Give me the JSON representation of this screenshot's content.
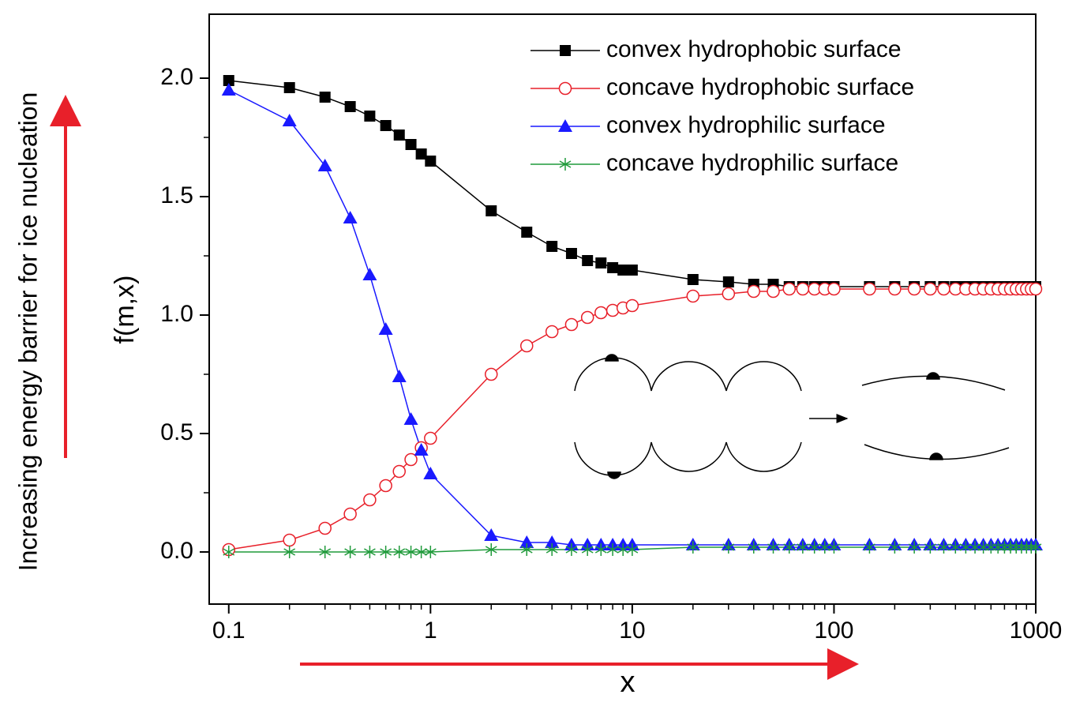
{
  "chart_data": {
    "type": "line",
    "annotation": "Increasing energy barrier for ice nucleation",
    "x_label": "x",
    "y_label": "f(m,x)",
    "x": [
      0.1,
      0.2,
      0.3,
      0.4,
      0.5,
      0.6,
      0.7,
      0.8,
      0.9,
      1,
      2,
      3,
      4,
      5,
      6,
      7,
      8,
      9,
      10,
      20,
      30,
      40,
      50,
      60,
      70,
      80,
      90,
      100,
      150,
      200,
      250,
      300,
      350,
      400,
      450,
      500,
      550,
      600,
      650,
      700,
      750,
      800,
      850,
      900,
      950,
      1000
    ],
    "series": [
      {
        "name": "convex hydrophobic surface",
        "color": "#000000",
        "marker": "square",
        "values": [
          1.99,
          1.96,
          1.92,
          1.88,
          1.84,
          1.8,
          1.76,
          1.72,
          1.68,
          1.65,
          1.44,
          1.35,
          1.29,
          1.26,
          1.23,
          1.22,
          1.2,
          1.19,
          1.19,
          1.15,
          1.14,
          1.13,
          1.13,
          1.12,
          1.12,
          1.12,
          1.12,
          1.12,
          1.12,
          1.12,
          1.12,
          1.12,
          1.12,
          1.12,
          1.12,
          1.12,
          1.12,
          1.12,
          1.12,
          1.12,
          1.12,
          1.12,
          1.12,
          1.12,
          1.12,
          1.12
        ]
      },
      {
        "name": "concave hydrophobic surface",
        "color": "#e8202a",
        "marker": "circle",
        "values": [
          0.01,
          0.05,
          0.1,
          0.16,
          0.22,
          0.28,
          0.34,
          0.39,
          0.44,
          0.48,
          0.75,
          0.87,
          0.93,
          0.96,
          0.99,
          1.01,
          1.02,
          1.03,
          1.04,
          1.08,
          1.09,
          1.1,
          1.1,
          1.11,
          1.11,
          1.11,
          1.11,
          1.11,
          1.11,
          1.11,
          1.11,
          1.11,
          1.11,
          1.11,
          1.11,
          1.11,
          1.11,
          1.11,
          1.11,
          1.11,
          1.11,
          1.11,
          1.11,
          1.11,
          1.11,
          1.11
        ]
      },
      {
        "name": "convex hydrophilic surface",
        "color": "#1a1aff",
        "marker": "triangle",
        "values": [
          1.95,
          1.82,
          1.63,
          1.41,
          1.17,
          0.94,
          0.74,
          0.56,
          0.43,
          0.33,
          0.07,
          0.04,
          0.04,
          0.03,
          0.03,
          0.03,
          0.03,
          0.03,
          0.03,
          0.03,
          0.03,
          0.03,
          0.03,
          0.03,
          0.03,
          0.03,
          0.03,
          0.03,
          0.03,
          0.03,
          0.03,
          0.03,
          0.03,
          0.03,
          0.03,
          0.03,
          0.03,
          0.03,
          0.03,
          0.03,
          0.03,
          0.03,
          0.03,
          0.03,
          0.03,
          0.03
        ]
      },
      {
        "name": "concave hydrophilic surface",
        "color": "#1f9a3a",
        "marker": "star",
        "values": [
          0,
          0,
          0,
          0,
          0,
          0,
          0,
          0,
          0,
          0,
          0.01,
          0.01,
          0.01,
          0.01,
          0.01,
          0.01,
          0.01,
          0.01,
          0.01,
          0.02,
          0.02,
          0.02,
          0.02,
          0.02,
          0.02,
          0.02,
          0.02,
          0.02,
          0.02,
          0.02,
          0.02,
          0.02,
          0.02,
          0.02,
          0.02,
          0.02,
          0.02,
          0.02,
          0.02,
          0.02,
          0.02,
          0.02,
          0.02,
          0.02,
          0.02,
          0.02
        ]
      }
    ],
    "xscale": "log",
    "xlim": [
      0.08,
      1000
    ],
    "xticks": [
      0.1,
      1,
      10,
      100,
      1000
    ],
    "xminorticks": [
      0.2,
      0.3,
      0.4,
      0.5,
      0.6,
      0.7,
      0.8,
      0.9,
      2,
      3,
      4,
      5,
      6,
      7,
      8,
      9,
      20,
      30,
      40,
      50,
      60,
      70,
      80,
      90,
      200,
      300,
      400,
      500,
      600,
      700,
      800,
      900
    ],
    "ylim": [
      -0.22,
      2.27
    ],
    "yticks": [
      {
        "value": 0,
        "label": "0.0"
      },
      0.5,
      {
        "value": 1,
        "label": "1.0"
      },
      1.5,
      {
        "value": 2,
        "label": "2.0"
      }
    ],
    "yminorticks": [
      0.25,
      0.75,
      1.25,
      1.75
    ],
    "legend": "upper right"
  }
}
